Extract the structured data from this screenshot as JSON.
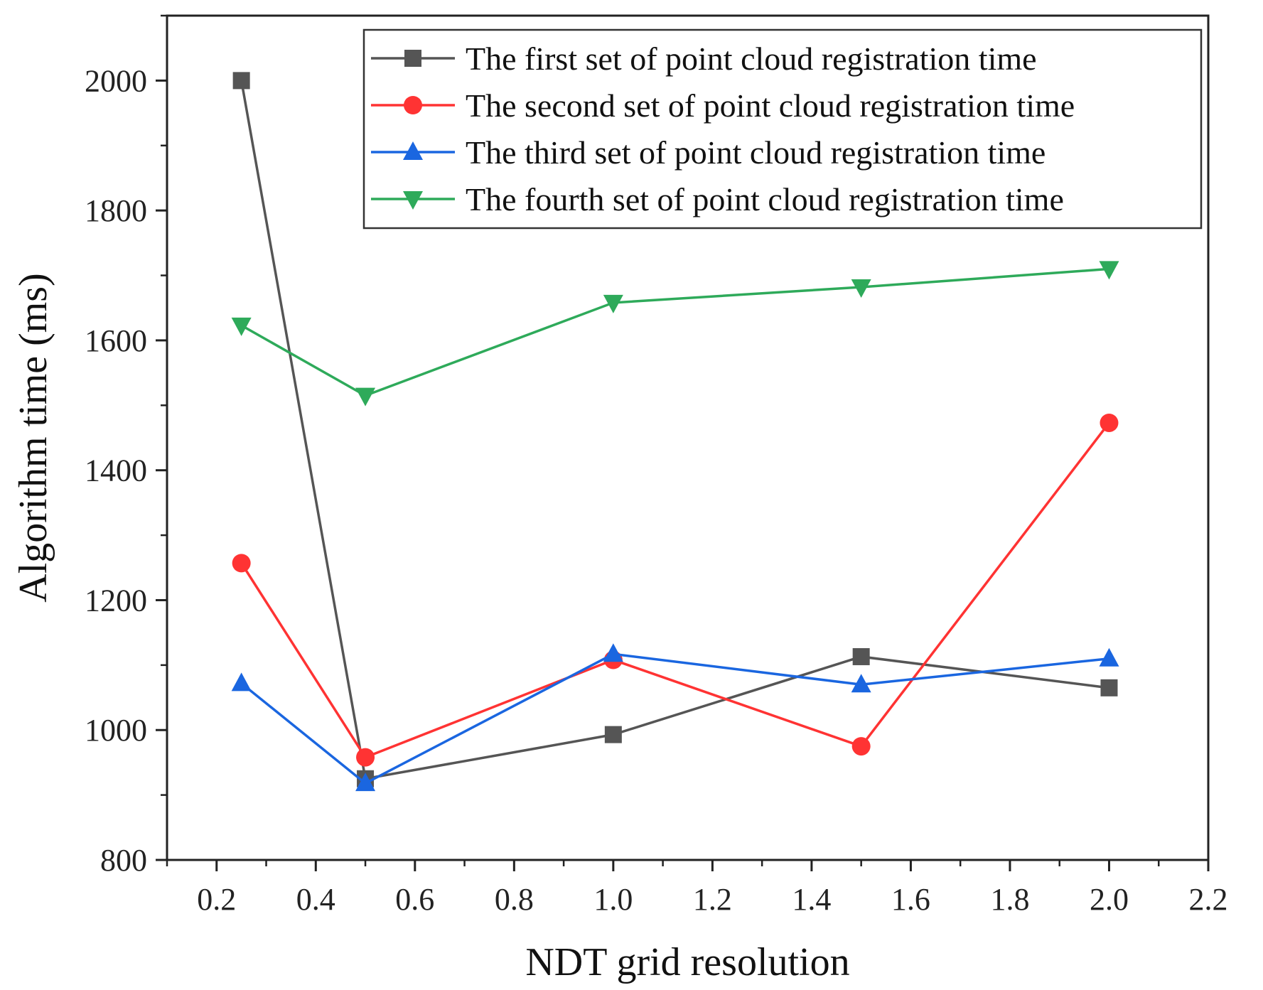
{
  "chart_data": {
    "type": "line",
    "title": "",
    "xlabel": "NDT grid resolution",
    "ylabel": "Algorithm time (ms)",
    "xlim": [
      0.1,
      2.2
    ],
    "ylim": [
      800,
      2100
    ],
    "x_ticks": [
      0.2,
      0.4,
      0.6,
      0.8,
      1.0,
      1.2,
      1.4,
      1.6,
      1.8,
      2.0,
      2.2
    ],
    "x_tick_labels": [
      "0.2",
      "0.4",
      "0.6",
      "0.8",
      "1.0",
      "1.2",
      "1.4",
      "1.6",
      "1.8",
      "2.0",
      "2.2"
    ],
    "y_ticks": [
      800,
      1000,
      1200,
      1400,
      1600,
      1800,
      2000
    ],
    "y_tick_labels": [
      "800",
      "1000",
      "1200",
      "1400",
      "1600",
      "1800",
      "2000"
    ],
    "grid": false,
    "legend_position": "top-right",
    "x": [
      0.25,
      0.5,
      1.0,
      1.5,
      2.0
    ],
    "series": [
      {
        "name": "The first set of point cloud registration time",
        "color": "#555555",
        "marker": "square",
        "values": [
          2000,
          925,
          993,
          1113,
          1065
        ]
      },
      {
        "name": "The second set of point cloud registration time",
        "color": "#ff3333",
        "marker": "circle",
        "values": [
          1257,
          958,
          1108,
          975,
          1473
        ]
      },
      {
        "name": "The third set of point cloud registration time",
        "color": "#1a66e0",
        "marker": "triangle-up",
        "values": [
          1072,
          918,
          1117,
          1070,
          1110
        ]
      },
      {
        "name": "The fourth set of point cloud registration time",
        "color": "#2eaa5a",
        "marker": "triangle-down",
        "values": [
          1623,
          1515,
          1658,
          1682,
          1710
        ]
      }
    ]
  }
}
